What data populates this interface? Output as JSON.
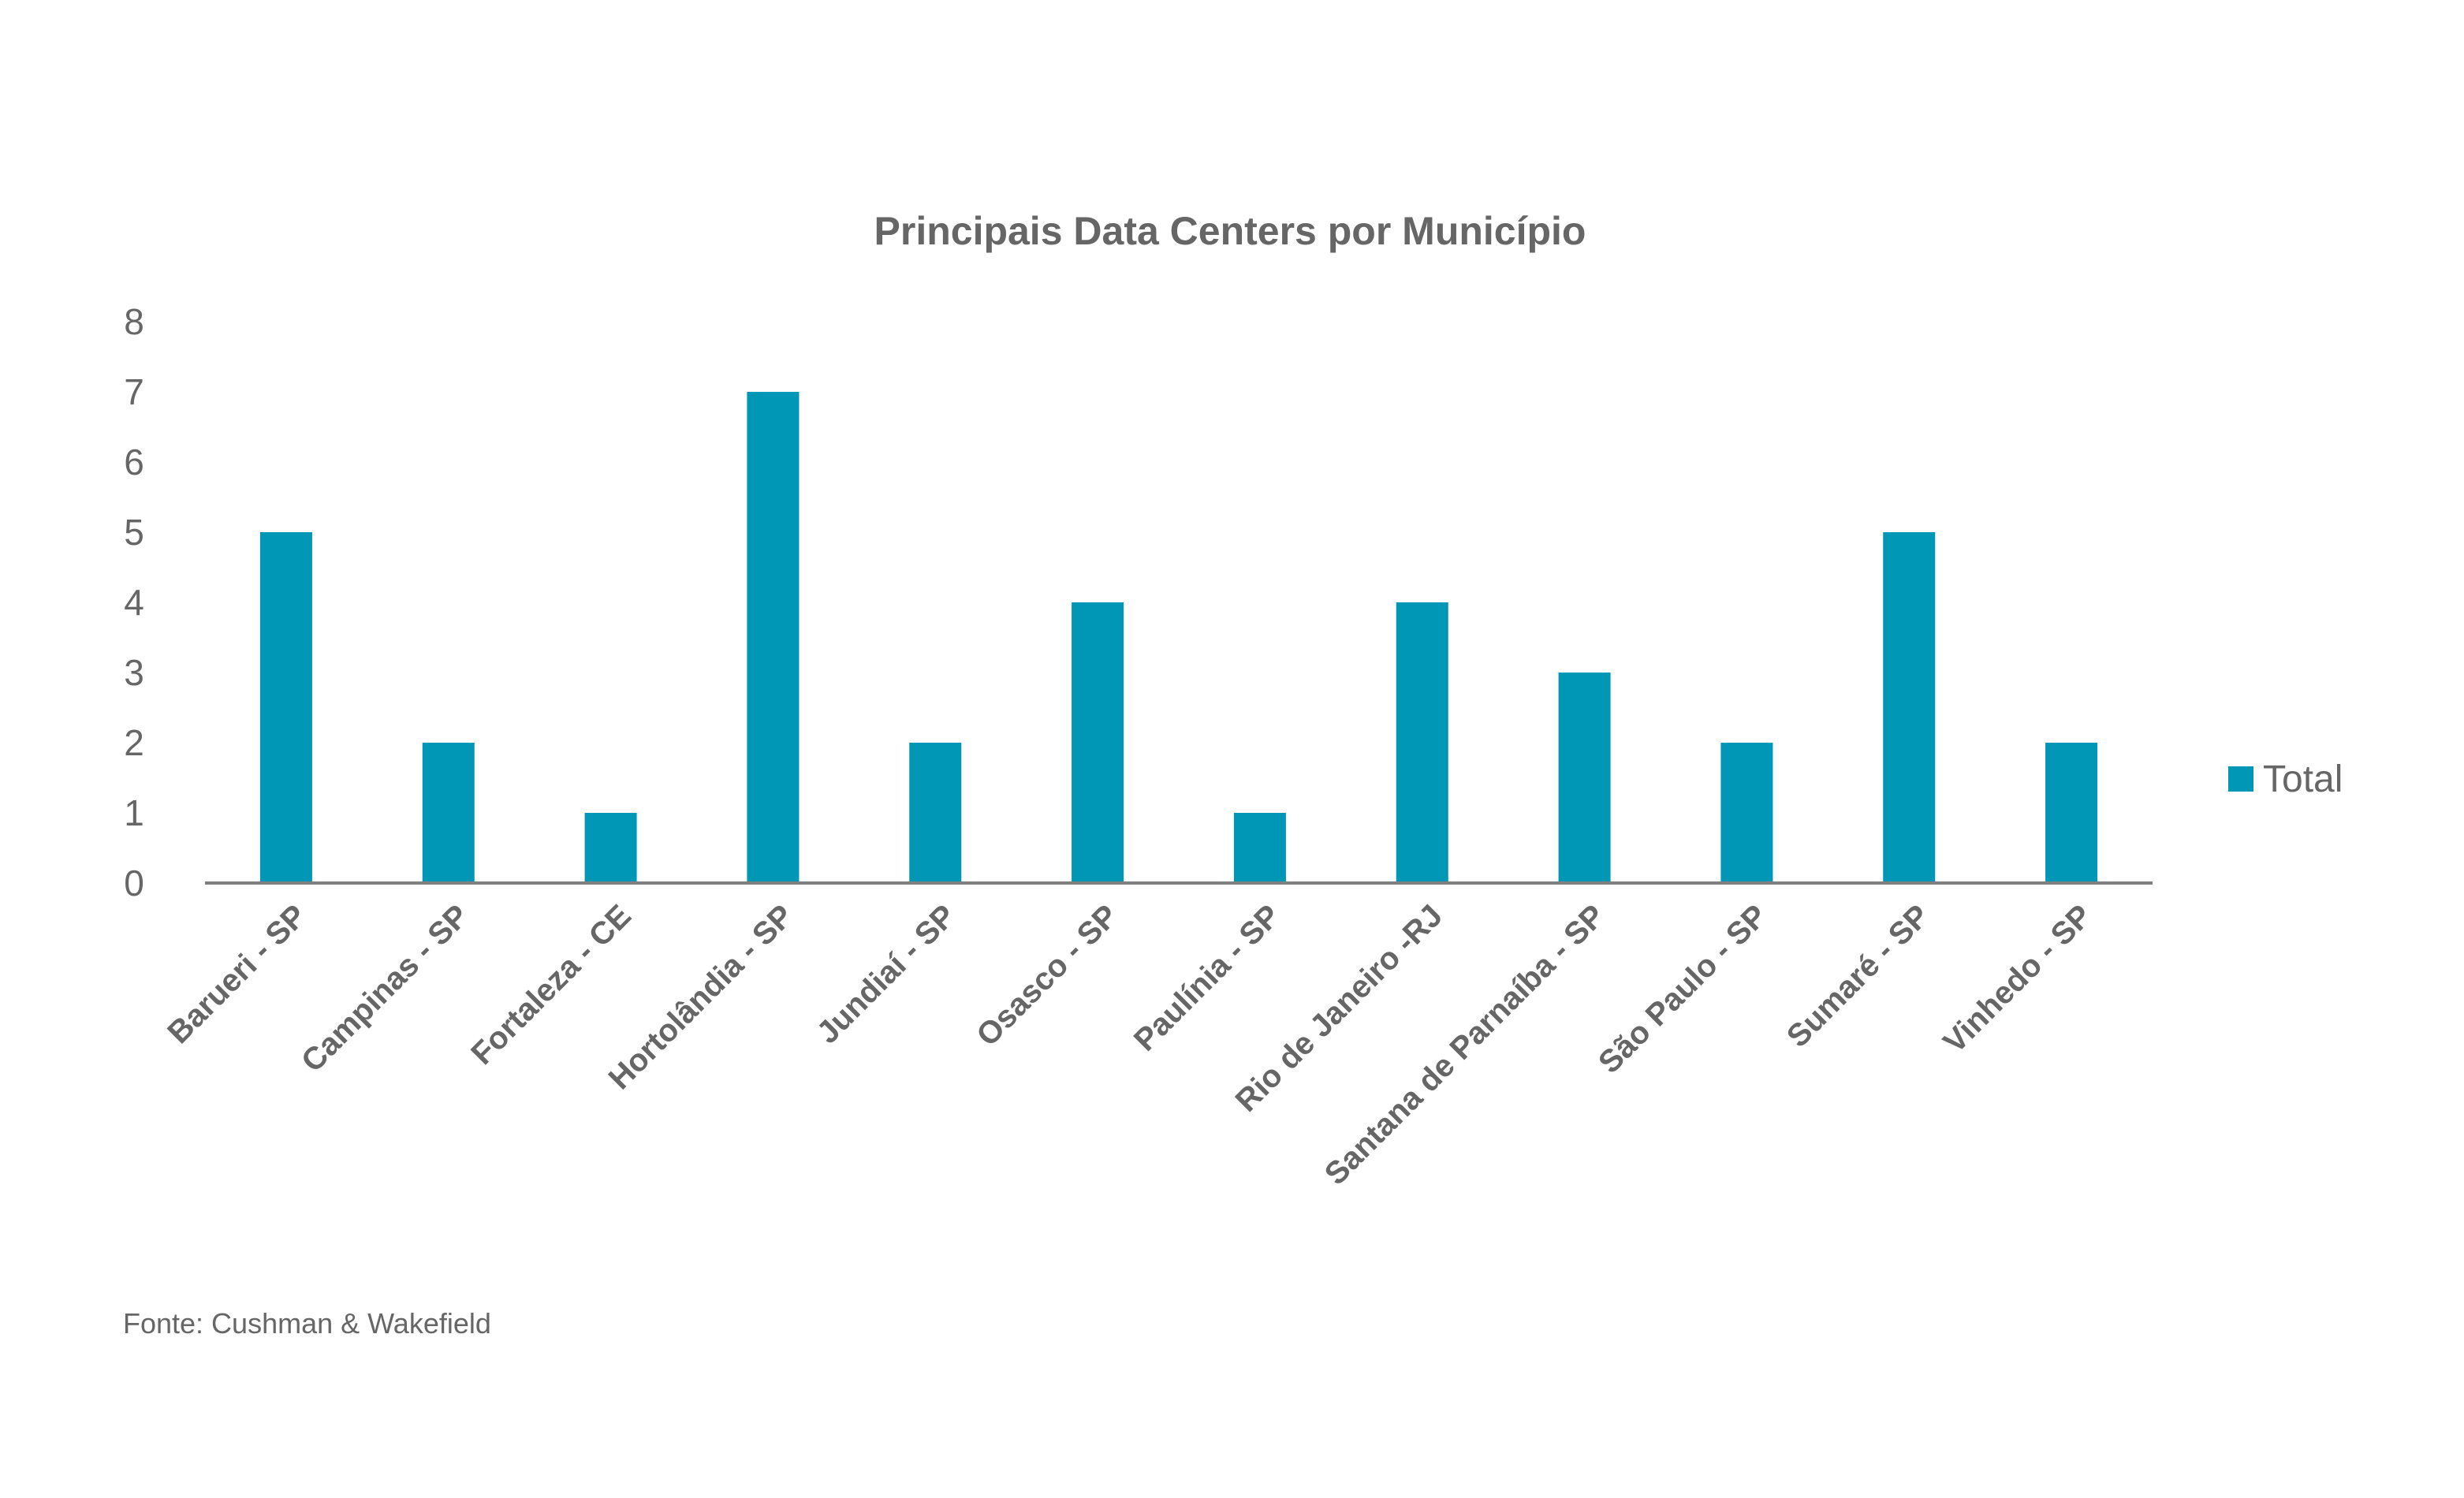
{
  "chart_data": {
    "type": "bar",
    "title": "Principais Data Centers por Município",
    "categories": [
      "Barueri - SP",
      "Campinas - SP",
      "Fortaleza - CE",
      "Hortolândia - SP",
      "Jundiaí - SP",
      "Osasco - SP",
      "Paulínia - SP",
      "Rio de Janeiro -RJ",
      "Santana de Parnaíba - SP",
      "São Paulo - SP",
      "Sumaré - SP",
      "Vinhedo - SP"
    ],
    "series": [
      {
        "name": "Total",
        "values": [
          5,
          2,
          1,
          7,
          2,
          4,
          1,
          4,
          3,
          2,
          5,
          2
        ],
        "color": "#0096b5"
      }
    ],
    "xlabel": "",
    "ylabel": "",
    "ylim": [
      0,
      8
    ],
    "yticks": [
      "0",
      "1",
      "2",
      "3",
      "4",
      "5",
      "6",
      "7",
      "8"
    ],
    "grid": false,
    "legend_position": "right",
    "axis_color": "#808080",
    "text_color": "#666666"
  },
  "source": "Fonte: Cushman & Wakefield"
}
